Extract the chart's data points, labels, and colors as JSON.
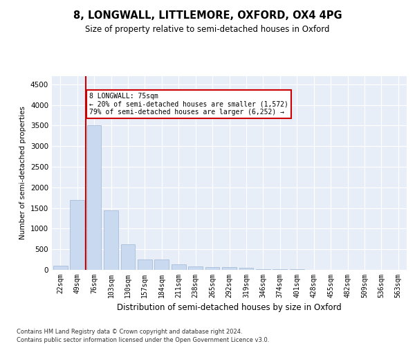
{
  "title1": "8, LONGWALL, LITTLEMORE, OXFORD, OX4 4PG",
  "title2": "Size of property relative to semi-detached houses in Oxford",
  "xlabel": "Distribution of semi-detached houses by size in Oxford",
  "ylabel": "Number of semi-detached properties",
  "categories": [
    "22sqm",
    "49sqm",
    "76sqm",
    "103sqm",
    "130sqm",
    "157sqm",
    "184sqm",
    "211sqm",
    "238sqm",
    "265sqm",
    "292sqm",
    "319sqm",
    "346sqm",
    "374sqm",
    "401sqm",
    "428sqm",
    "455sqm",
    "482sqm",
    "509sqm",
    "536sqm",
    "563sqm"
  ],
  "values": [
    100,
    1700,
    3500,
    1450,
    620,
    260,
    250,
    140,
    90,
    75,
    60,
    50,
    20,
    15,
    10,
    8,
    5,
    4,
    3,
    2,
    2
  ],
  "bar_color": "#c9d9f0",
  "bar_edge_color": "#a8bfd8",
  "vline_color": "#cc0000",
  "annotation_text": "8 LONGWALL: 75sqm\n← 20% of semi-detached houses are smaller (1,572)\n79% of semi-detached houses are larger (6,252) →",
  "annotation_box_color": "#ffffff",
  "annotation_box_edge_color": "#cc0000",
  "ylim": [
    0,
    4700
  ],
  "yticks": [
    0,
    500,
    1000,
    1500,
    2000,
    2500,
    3000,
    3500,
    4000,
    4500
  ],
  "background_color": "#ffffff",
  "plot_bg_color": "#e8eef8",
  "grid_color": "#ffffff",
  "footnote1": "Contains HM Land Registry data © Crown copyright and database right 2024.",
  "footnote2": "Contains public sector information licensed under the Open Government Licence v3.0."
}
